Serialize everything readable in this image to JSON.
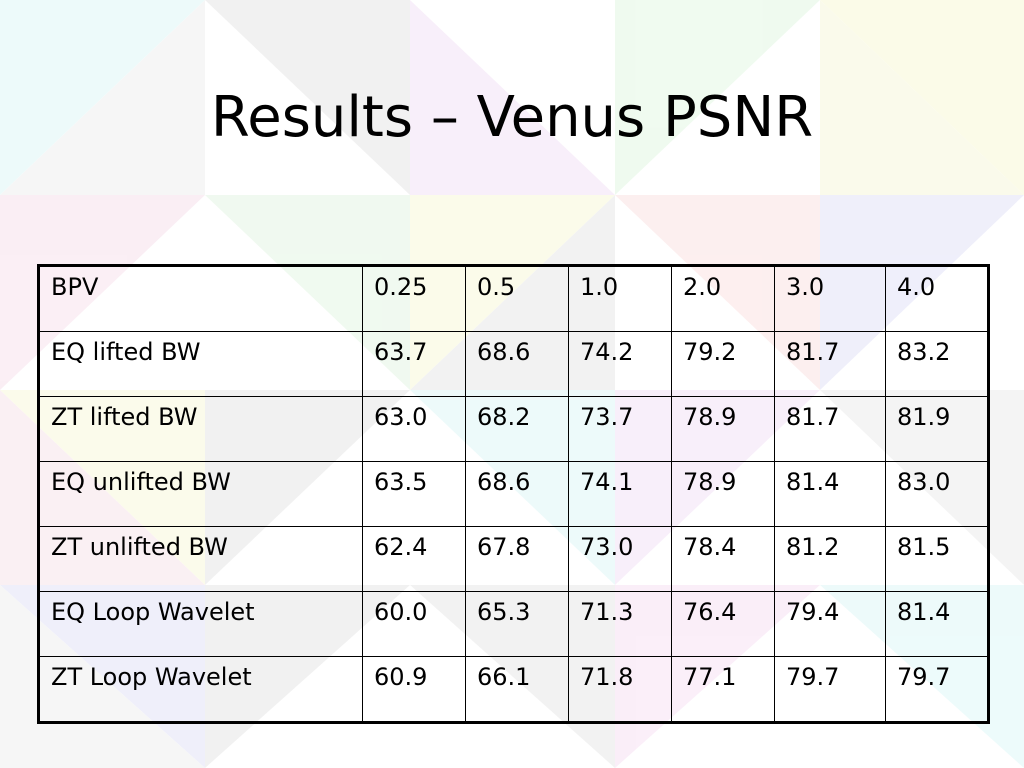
{
  "slide": {
    "title": "Results – Venus PSNR"
  },
  "table": {
    "header": [
      "BPV",
      "0.25",
      "0.5",
      "1.0",
      "2.0",
      "3.0",
      "4.0"
    ],
    "rows": [
      [
        "EQ lifted BW",
        "63.7",
        "68.6",
        "74.2",
        "79.2",
        "81.7",
        "83.2"
      ],
      [
        "ZT lifted BW",
        "63.0",
        "68.2",
        "73.7",
        "78.9",
        "81.7",
        "81.9"
      ],
      [
        "EQ unlifted BW",
        "63.5",
        "68.6",
        "74.1",
        "78.9",
        "81.4",
        "83.0"
      ],
      [
        "ZT unlifted BW",
        "62.4",
        "67.8",
        "73.0",
        "78.4",
        "81.2",
        "81.5"
      ],
      [
        "EQ Loop Wavelet",
        "60.0",
        "65.3",
        "71.3",
        "76.4",
        "79.4",
        "81.4"
      ],
      [
        "ZT Loop Wavelet",
        "60.9",
        "66.1",
        "71.8",
        "77.1",
        "79.7",
        "79.7"
      ]
    ]
  }
}
